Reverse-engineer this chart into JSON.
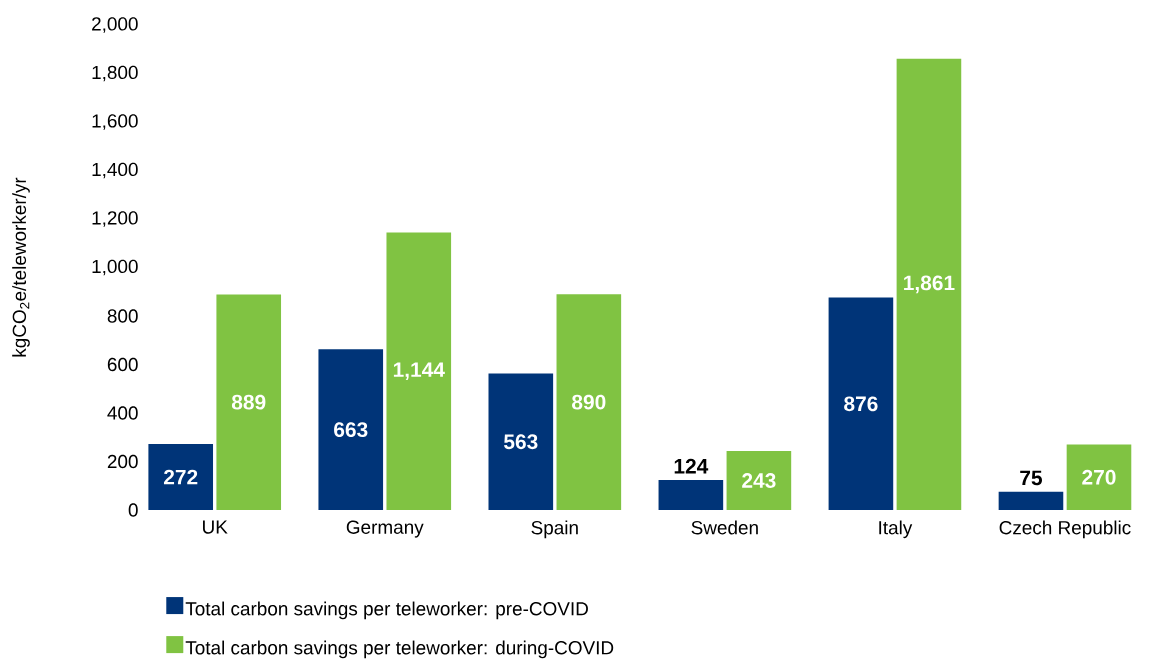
{
  "chart_data": {
    "type": "bar",
    "ylabel": "kgCO$_{2}$e/teleworker/yr",
    "categories": [
      "UK",
      "Germany",
      "Spain",
      "Sweden",
      "Italy",
      "Czech Republic"
    ],
    "series": [
      {
        "name": "Total carbon savings per teleworker: pre-COVID",
        "color": "#003478",
        "values": [
          272,
          663,
          563,
          124,
          876,
          75
        ],
        "value_labels": [
          "272",
          "663",
          "563",
          "124",
          "876",
          "75"
        ]
      },
      {
        "name": "Total carbon savings per teleworker: during-COVID",
        "color": "#80c342",
        "values": [
          889,
          1144,
          890,
          243,
          1861,
          270
        ],
        "value_labels": [
          "889",
          "1,144",
          "890",
          "243",
          "1,861",
          "270"
        ]
      }
    ],
    "ylim": [
      0,
      2000
    ],
    "yticks": [
      {
        "value": 0,
        "label": "0"
      },
      {
        "value": 200,
        "label": "200"
      },
      {
        "value": 400,
        "label": "400"
      },
      {
        "value": 600,
        "label": "600"
      },
      {
        "value": 800,
        "label": "800"
      },
      {
        "value": 1000,
        "label": "1,000"
      },
      {
        "value": 1200,
        "label": "1,200"
      },
      {
        "value": 1400,
        "label": "1,400"
      },
      {
        "value": 1600,
        "label": "1,600"
      },
      {
        "value": 1800,
        "label": "1,800"
      },
      {
        "value": 2000,
        "label": "2,000"
      }
    ],
    "grid": false,
    "legend": "bottom"
  }
}
